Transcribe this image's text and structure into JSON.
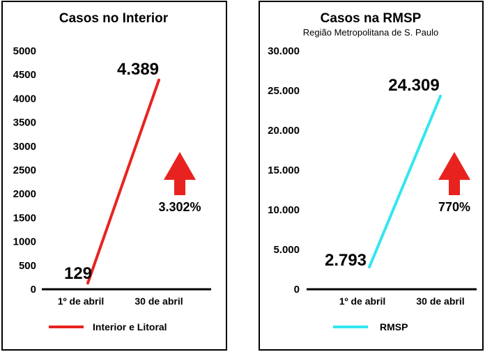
{
  "chart_data": [
    {
      "type": "line",
      "title": "Casos no Interior",
      "subtitle": "",
      "categories": [
        "1º de abril",
        "30 de abril"
      ],
      "yticks": [
        "0",
        "500",
        "1000",
        "1500",
        "2000",
        "2500",
        "3000",
        "3500",
        "4000",
        "4500",
        "5000"
      ],
      "ylim": [
        0,
        5000
      ],
      "series": [
        {
          "name": "Interior e Litoral",
          "values": [
            129,
            4389
          ],
          "color": "#e8231f",
          "labels": [
            "129",
            "4.389"
          ]
        }
      ],
      "growth_label": "3.302%",
      "arrow_color": "#e8231f",
      "legend_position": "bottom"
    },
    {
      "type": "line",
      "title": "Casos na RMSP",
      "subtitle": "Região Metropolitana de S. Paulo",
      "categories": [
        "1º de abril",
        "30 de abril"
      ],
      "yticks": [
        "0",
        "5.000",
        "10.000",
        "15.000",
        "20.000",
        "25.000",
        "30.000"
      ],
      "ylim": [
        0,
        30000
      ],
      "series": [
        {
          "name": "RMSP",
          "values": [
            2793,
            24309
          ],
          "color": "#33e6f0",
          "labels": [
            "2.793",
            "24.309"
          ]
        }
      ],
      "growth_label": "770%",
      "arrow_color": "#e8231f",
      "legend_position": "bottom"
    }
  ]
}
